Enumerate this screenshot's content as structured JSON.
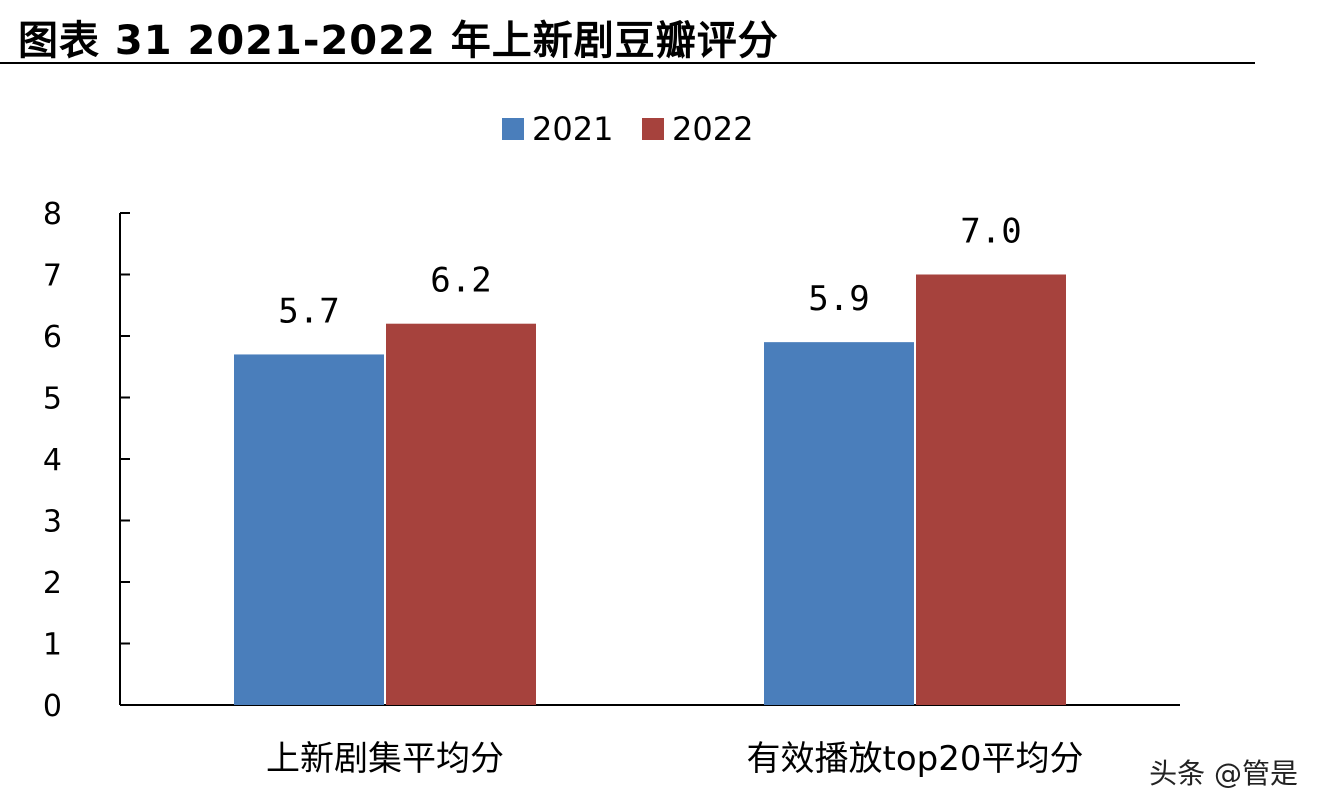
{
  "title": "图表 31 2021-2022 年上新剧豆瓣评分",
  "watermark": "头条 @管是",
  "chart_data": {
    "type": "bar",
    "categories": [
      "上新剧集平均分",
      "有效播放top20平均分"
    ],
    "series": [
      {
        "name": "2021",
        "values": [
          5.7,
          5.9
        ],
        "color": "#4a7ebb"
      },
      {
        "name": "2022",
        "values": [
          6.2,
          7.0
        ],
        "color": "#a6423d"
      }
    ],
    "data_labels": [
      [
        "5.7",
        "5.9"
      ],
      [
        "6.2",
        "7.0"
      ]
    ],
    "yticks": [
      "0",
      "1",
      "2",
      "3",
      "4",
      "5",
      "6",
      "7",
      "8"
    ],
    "ylim": [
      0,
      8
    ],
    "grid": false,
    "legend": "top-center"
  }
}
